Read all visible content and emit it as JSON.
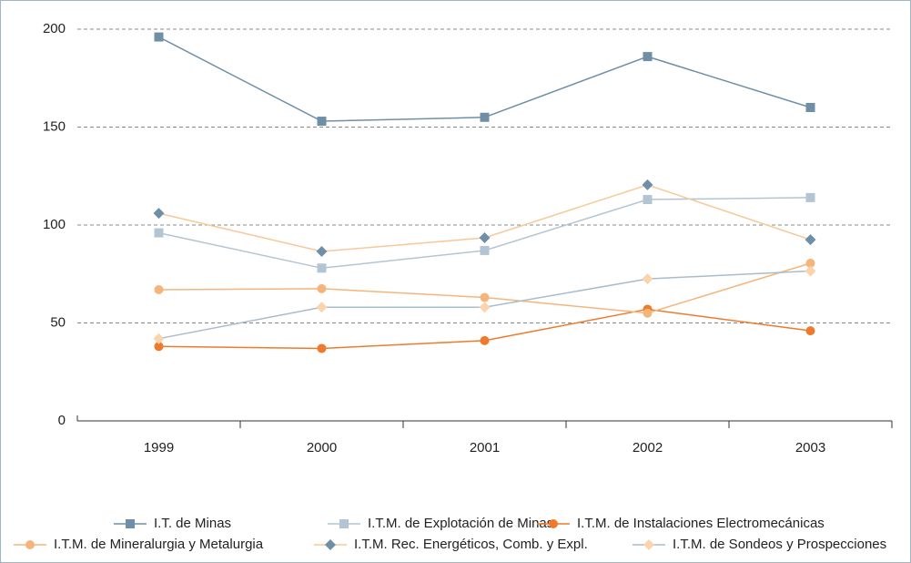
{
  "chart_data": {
    "type": "line",
    "categories": [
      "1999",
      "2000",
      "2001",
      "2002",
      "2003"
    ],
    "ylim": [
      0,
      200
    ],
    "yticks": [
      0,
      50,
      100,
      150,
      200
    ],
    "grid": true,
    "series": [
      {
        "name": "I.T. de Minas",
        "color": "#6f8fa6",
        "marker": "square",
        "marker_color": "#6f8fa6",
        "values": [
          196,
          153,
          155,
          186,
          160
        ]
      },
      {
        "name": "I.T.M. de Explotación de Minas",
        "color": "#b3c5d3",
        "marker": "square",
        "marker_color": "#b3c5d3",
        "values": [
          96,
          78,
          87,
          113,
          114
        ]
      },
      {
        "name": "I.T.M. de Instalaciones Electromecánicas",
        "color": "#ee7a2c",
        "marker": "circle",
        "marker_color": "#ee7a2c",
        "values": [
          38,
          37,
          41,
          57,
          46
        ]
      },
      {
        "name": "I.T.M. de Mineralurgia y Metalurgia",
        "color": "#f5b57a",
        "marker": "circle",
        "marker_color": "#f5b57a",
        "values": [
          67,
          67.5,
          63,
          55,
          80.5
        ]
      },
      {
        "name": "I.T.M. Rec. Energéticos, Comb. y Expl.",
        "color": "#f7c898",
        "marker": "diamond",
        "marker_color": "#6f8fa6",
        "values": [
          106,
          86.5,
          93.5,
          120.5,
          92.5
        ]
      },
      {
        "name": "I.T.M. de Sondeos y Prospecciones",
        "color": "#a9bccb",
        "marker": "diamond",
        "marker_color": "#fbd3ad",
        "values": [
          42,
          58,
          58,
          72.5,
          76.5
        ]
      }
    ]
  }
}
